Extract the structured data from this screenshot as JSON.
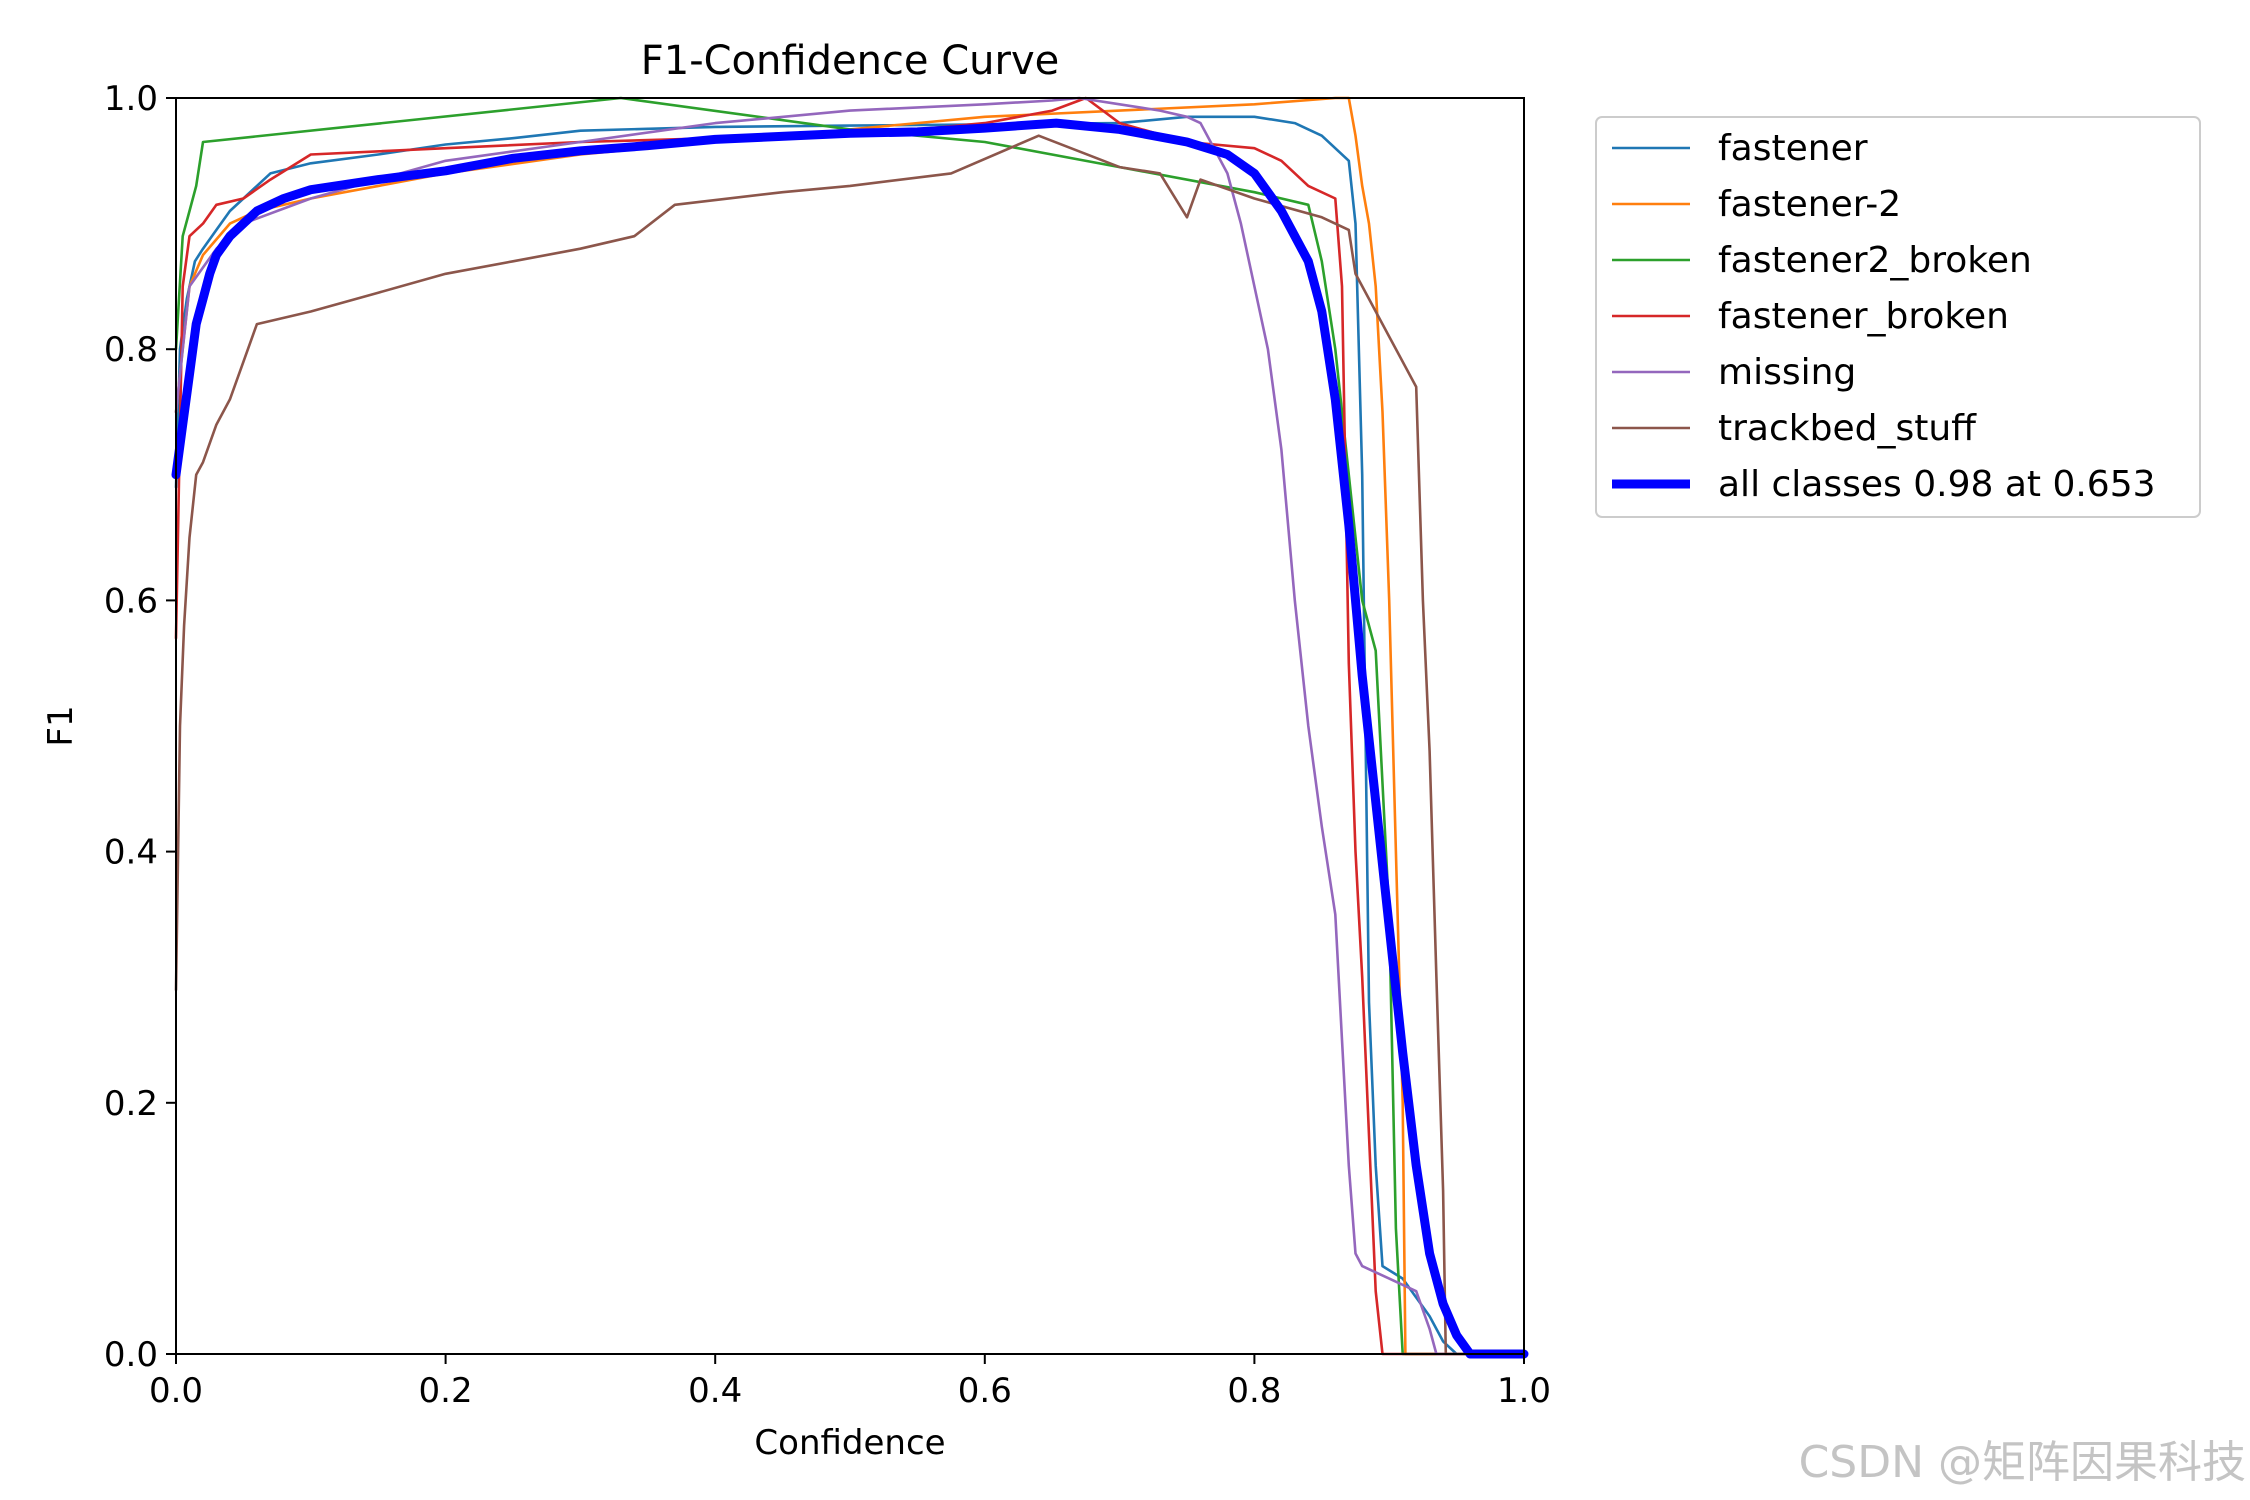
{
  "chart_data": {
    "type": "line",
    "title": "F1-Confidence Curve",
    "xlabel": "Confidence",
    "ylabel": "F1",
    "xlim": [
      0,
      1
    ],
    "ylim": [
      0,
      1
    ],
    "xticks": [
      "0.0",
      "0.2",
      "0.4",
      "0.6",
      "0.8",
      "1.0"
    ],
    "yticks": [
      "0.0",
      "0.2",
      "0.4",
      "0.6",
      "0.8",
      "1.0"
    ],
    "grid": false,
    "legend_position": "outside-top-right",
    "series": [
      {
        "name": "fastener",
        "color": "#1f77b4",
        "points": [
          [
            0,
            0.69
          ],
          [
            0.003,
            0.8
          ],
          [
            0.008,
            0.84
          ],
          [
            0.014,
            0.87
          ],
          [
            0.02,
            0.88
          ],
          [
            0.03,
            0.895
          ],
          [
            0.04,
            0.91
          ],
          [
            0.05,
            0.92
          ],
          [
            0.06,
            0.93
          ],
          [
            0.07,
            0.94
          ],
          [
            0.1,
            0.948
          ],
          [
            0.15,
            0.955
          ],
          [
            0.2,
            0.963
          ],
          [
            0.25,
            0.968
          ],
          [
            0.3,
            0.974
          ],
          [
            0.4,
            0.977
          ],
          [
            0.5,
            0.978
          ],
          [
            0.6,
            0.979
          ],
          [
            0.7,
            0.98
          ],
          [
            0.75,
            0.985
          ],
          [
            0.8,
            0.985
          ],
          [
            0.83,
            0.98
          ],
          [
            0.85,
            0.97
          ],
          [
            0.87,
            0.95
          ],
          [
            0.875,
            0.9
          ],
          [
            0.88,
            0.7
          ],
          [
            0.885,
            0.28
          ],
          [
            0.89,
            0.15
          ],
          [
            0.895,
            0.07
          ],
          [
            0.91,
            0.06
          ],
          [
            0.93,
            0.03
          ],
          [
            0.94,
            0.01
          ],
          [
            0.95,
            0.0
          ],
          [
            1.0,
            0.0
          ]
        ]
      },
      {
        "name": "fastener-2",
        "color": "#ff7f0e",
        "points": [
          [
            0,
            0.75
          ],
          [
            0.005,
            0.8
          ],
          [
            0.01,
            0.85
          ],
          [
            0.02,
            0.875
          ],
          [
            0.04,
            0.9
          ],
          [
            0.06,
            0.91
          ],
          [
            0.1,
            0.92
          ],
          [
            0.2,
            0.94
          ],
          [
            0.3,
            0.955
          ],
          [
            0.4,
            0.965
          ],
          [
            0.5,
            0.975
          ],
          [
            0.6,
            0.985
          ],
          [
            0.7,
            0.99
          ],
          [
            0.8,
            0.995
          ],
          [
            0.86,
            1.0
          ],
          [
            0.87,
            1.0
          ],
          [
            0.875,
            0.97
          ],
          [
            0.88,
            0.93
          ],
          [
            0.885,
            0.9
          ],
          [
            0.89,
            0.85
          ],
          [
            0.895,
            0.75
          ],
          [
            0.9,
            0.6
          ],
          [
            0.905,
            0.4
          ],
          [
            0.91,
            0.2
          ],
          [
            0.912,
            0.0
          ],
          [
            1.0,
            0.0
          ]
        ]
      },
      {
        "name": "fastener2_broken",
        "color": "#2ca02c",
        "points": [
          [
            0,
            0.8
          ],
          [
            0.005,
            0.89
          ],
          [
            0.01,
            0.91
          ],
          [
            0.015,
            0.93
          ],
          [
            0.02,
            0.965
          ],
          [
            0.33,
            1.0
          ],
          [
            0.5,
            0.975
          ],
          [
            0.6,
            0.965
          ],
          [
            0.7,
            0.945
          ],
          [
            0.8,
            0.925
          ],
          [
            0.84,
            0.915
          ],
          [
            0.85,
            0.87
          ],
          [
            0.86,
            0.8
          ],
          [
            0.87,
            0.7
          ],
          [
            0.88,
            0.6
          ],
          [
            0.89,
            0.56
          ],
          [
            0.9,
            0.35
          ],
          [
            0.905,
            0.1
          ],
          [
            0.91,
            0.0
          ],
          [
            1.0,
            0.0
          ]
        ]
      },
      {
        "name": "fastener_broken",
        "color": "#d62728",
        "points": [
          [
            0,
            0.57
          ],
          [
            0.005,
            0.85
          ],
          [
            0.01,
            0.89
          ],
          [
            0.02,
            0.9
          ],
          [
            0.03,
            0.915
          ],
          [
            0.05,
            0.92
          ],
          [
            0.07,
            0.935
          ],
          [
            0.1,
            0.955
          ],
          [
            0.2,
            0.96
          ],
          [
            0.3,
            0.965
          ],
          [
            0.4,
            0.968
          ],
          [
            0.5,
            0.97
          ],
          [
            0.6,
            0.98
          ],
          [
            0.65,
            0.99
          ],
          [
            0.675,
            1.0
          ],
          [
            0.7,
            0.98
          ],
          [
            0.75,
            0.965
          ],
          [
            0.8,
            0.96
          ],
          [
            0.82,
            0.95
          ],
          [
            0.84,
            0.93
          ],
          [
            0.86,
            0.92
          ],
          [
            0.865,
            0.85
          ],
          [
            0.87,
            0.55
          ],
          [
            0.875,
            0.4
          ],
          [
            0.88,
            0.3
          ],
          [
            0.89,
            0.05
          ],
          [
            0.895,
            0.0
          ],
          [
            1.0,
            0.0
          ]
        ]
      },
      {
        "name": "missing",
        "color": "#9467bd",
        "points": [
          [
            0,
            0.75
          ],
          [
            0.01,
            0.85
          ],
          [
            0.03,
            0.88
          ],
          [
            0.05,
            0.9
          ],
          [
            0.1,
            0.92
          ],
          [
            0.15,
            0.935
          ],
          [
            0.2,
            0.95
          ],
          [
            0.3,
            0.965
          ],
          [
            0.4,
            0.98
          ],
          [
            0.5,
            0.99
          ],
          [
            0.6,
            0.995
          ],
          [
            0.65,
            0.998
          ],
          [
            0.67,
            1.0
          ],
          [
            0.7,
            0.995
          ],
          [
            0.73,
            0.99
          ],
          [
            0.75,
            0.985
          ],
          [
            0.76,
            0.98
          ],
          [
            0.77,
            0.96
          ],
          [
            0.78,
            0.94
          ],
          [
            0.79,
            0.9
          ],
          [
            0.8,
            0.85
          ],
          [
            0.81,
            0.8
          ],
          [
            0.82,
            0.72
          ],
          [
            0.83,
            0.6
          ],
          [
            0.84,
            0.5
          ],
          [
            0.85,
            0.42
          ],
          [
            0.86,
            0.35
          ],
          [
            0.865,
            0.25
          ],
          [
            0.87,
            0.15
          ],
          [
            0.875,
            0.08
          ],
          [
            0.88,
            0.07
          ],
          [
            0.9,
            0.06
          ],
          [
            0.92,
            0.05
          ],
          [
            0.93,
            0.02
          ],
          [
            0.935,
            0.0
          ],
          [
            1.0,
            0.0
          ]
        ]
      },
      {
        "name": "trackbed_stuff",
        "color": "#8c564b",
        "points": [
          [
            0,
            0.29
          ],
          [
            0.003,
            0.5
          ],
          [
            0.006,
            0.58
          ],
          [
            0.01,
            0.65
          ],
          [
            0.015,
            0.7
          ],
          [
            0.02,
            0.71
          ],
          [
            0.03,
            0.74
          ],
          [
            0.04,
            0.76
          ],
          [
            0.05,
            0.79
          ],
          [
            0.06,
            0.82
          ],
          [
            0.1,
            0.83
          ],
          [
            0.15,
            0.845
          ],
          [
            0.2,
            0.86
          ],
          [
            0.25,
            0.87
          ],
          [
            0.3,
            0.88
          ],
          [
            0.34,
            0.89
          ],
          [
            0.37,
            0.915
          ],
          [
            0.45,
            0.925
          ],
          [
            0.5,
            0.93
          ],
          [
            0.575,
            0.94
          ],
          [
            0.64,
            0.97
          ],
          [
            0.7,
            0.945
          ],
          [
            0.73,
            0.94
          ],
          [
            0.75,
            0.905
          ],
          [
            0.76,
            0.935
          ],
          [
            0.8,
            0.92
          ],
          [
            0.85,
            0.905
          ],
          [
            0.87,
            0.895
          ],
          [
            0.875,
            0.86
          ],
          [
            0.9,
            0.81
          ],
          [
            0.92,
            0.77
          ],
          [
            0.925,
            0.6
          ],
          [
            0.93,
            0.48
          ],
          [
            0.935,
            0.3
          ],
          [
            0.94,
            0.13
          ],
          [
            0.942,
            0.0
          ],
          [
            1.0,
            0.0
          ]
        ]
      },
      {
        "name": "all classes 0.98 at 0.653",
        "color": "#0000ff",
        "bold": true,
        "points": [
          [
            0,
            0.7
          ],
          [
            0.005,
            0.74
          ],
          [
            0.01,
            0.78
          ],
          [
            0.015,
            0.82
          ],
          [
            0.02,
            0.84
          ],
          [
            0.025,
            0.86
          ],
          [
            0.03,
            0.875
          ],
          [
            0.04,
            0.89
          ],
          [
            0.05,
            0.9
          ],
          [
            0.06,
            0.91
          ],
          [
            0.08,
            0.92
          ],
          [
            0.1,
            0.927
          ],
          [
            0.15,
            0.935
          ],
          [
            0.2,
            0.942
          ],
          [
            0.25,
            0.952
          ],
          [
            0.3,
            0.958
          ],
          [
            0.35,
            0.962
          ],
          [
            0.4,
            0.967
          ],
          [
            0.5,
            0.972
          ],
          [
            0.55,
            0.973
          ],
          [
            0.6,
            0.976
          ],
          [
            0.653,
            0.98
          ],
          [
            0.7,
            0.975
          ],
          [
            0.75,
            0.965
          ],
          [
            0.78,
            0.955
          ],
          [
            0.8,
            0.94
          ],
          [
            0.82,
            0.91
          ],
          [
            0.84,
            0.87
          ],
          [
            0.85,
            0.83
          ],
          [
            0.86,
            0.76
          ],
          [
            0.87,
            0.66
          ],
          [
            0.88,
            0.54
          ],
          [
            0.89,
            0.44
          ],
          [
            0.9,
            0.34
          ],
          [
            0.91,
            0.24
          ],
          [
            0.92,
            0.15
          ],
          [
            0.93,
            0.08
          ],
          [
            0.94,
            0.04
          ],
          [
            0.95,
            0.015
          ],
          [
            0.96,
            0.0
          ],
          [
            1.0,
            0.0
          ]
        ]
      }
    ]
  },
  "watermark": "CSDN @矩阵因果科技"
}
